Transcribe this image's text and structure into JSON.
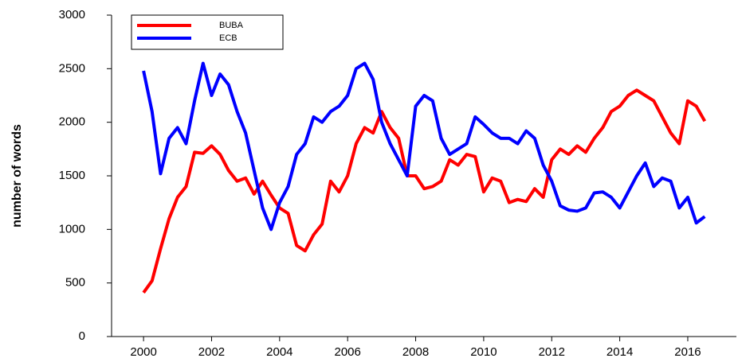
{
  "chart_data": {
    "type": "line",
    "y_label": "number of words",
    "x": [
      2000,
      2000.25,
      2000.5,
      2000.75,
      2001,
      2001.25,
      2001.5,
      2001.75,
      2002,
      2002.25,
      2002.5,
      2002.75,
      2003,
      2003.25,
      2003.5,
      2003.75,
      2004,
      2004.25,
      2004.5,
      2004.75,
      2005,
      2005.25,
      2005.5,
      2005.75,
      2006,
      2006.25,
      2006.5,
      2006.75,
      2007,
      2007.25,
      2007.5,
      2007.75,
      2008,
      2008.25,
      2008.5,
      2008.75,
      2009,
      2009.25,
      2009.5,
      2009.75,
      2010,
      2010.25,
      2010.5,
      2010.75,
      2011,
      2011.25,
      2011.5,
      2011.75,
      2012,
      2012.25,
      2012.5,
      2012.75,
      2013,
      2013.25,
      2013.5,
      2013.75,
      2014,
      2014.25,
      2014.5,
      2014.75,
      2015,
      2015.25,
      2015.5,
      2015.75,
      2016,
      2016.25,
      2016.5
    ],
    "series": [
      {
        "name": "BUBA",
        "color": "#ff0000",
        "values": [
          410,
          520,
          820,
          1100,
          1300,
          1400,
          1720,
          1710,
          1780,
          1700,
          1550,
          1450,
          1480,
          1330,
          1450,
          1320,
          1200,
          1150,
          850,
          800,
          950,
          1050,
          1450,
          1350,
          1500,
          1800,
          1950,
          1900,
          2100,
          1950,
          1850,
          1500,
          1500,
          1380,
          1400,
          1450,
          1650,
          1600,
          1700,
          1680,
          1350,
          1480,
          1450,
          1250,
          1280,
          1260,
          1380,
          1300,
          1650,
          1750,
          1700,
          1780,
          1720,
          1850,
          1950,
          2100,
          2150,
          2250,
          2300,
          2250,
          2200,
          2050,
          1900,
          1800,
          2200,
          2150,
          2010
        ]
      },
      {
        "name": "ECB",
        "color": "#0000ff",
        "values": [
          2480,
          2100,
          1520,
          1850,
          1950,
          1800,
          2200,
          2550,
          2250,
          2450,
          2350,
          2100,
          1900,
          1550,
          1200,
          1000,
          1250,
          1400,
          1700,
          1800,
          2050,
          2000,
          2100,
          2150,
          2250,
          2500,
          2550,
          2400,
          2000,
          1800,
          1650,
          1500,
          2150,
          2250,
          2200,
          1850,
          1700,
          1750,
          1800,
          2050,
          1980,
          1900,
          1850,
          1850,
          1800,
          1920,
          1850,
          1600,
          1450,
          1220,
          1180,
          1170,
          1200,
          1340,
          1350,
          1300,
          1200,
          1350,
          1500,
          1620,
          1400,
          1480,
          1450,
          1200,
          1300,
          1060,
          1120
        ]
      }
    ],
    "xlim": [
      1999.06,
      2017.43
    ],
    "xticks": [
      2000,
      2002,
      2004,
      2006,
      2008,
      2010,
      2012,
      2014,
      2016
    ],
    "ylim": [
      0,
      3000
    ],
    "yticks": [
      0,
      500,
      1000,
      1500,
      2000,
      2500,
      3000
    ],
    "legend": "top-left"
  }
}
